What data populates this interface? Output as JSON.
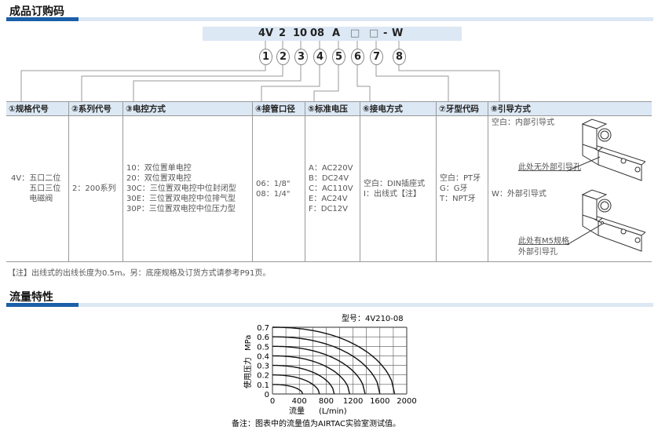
{
  "section1": {
    "title": "成品订购码"
  },
  "order_code": {
    "parts": [
      "4V",
      "2",
      "10",
      "08",
      "A",
      "□",
      "□",
      "-",
      "W"
    ],
    "circles": [
      "1",
      "2",
      "3",
      "4",
      "5",
      "6",
      "7",
      "8"
    ]
  },
  "table": {
    "headers": [
      "①规格代号",
      "②系列代号",
      "③电控方式",
      "④接管口径",
      "⑤标准电压",
      "⑥接电方式",
      "⑦牙型代码",
      "⑧引导方式"
    ],
    "col1": {
      "prefix": "4V：",
      "lines": [
        "五口二位",
        "五口三位",
        "电磁阀"
      ]
    },
    "col2": [
      "2：200系列"
    ],
    "col3": [
      "10：双位置单电控",
      "20：双位置双电控",
      "30C：三位置双电控中位封闭型",
      "30E：三位置双电控中位排气型",
      "30P：三位置双电控中位压力型"
    ],
    "col4": [
      "06：1/8\"",
      "08：1/4\""
    ],
    "col5": [
      "A：AC220V",
      "B：DC24V",
      "C：AC110V",
      "E：AC24V",
      "F：DC12V"
    ],
    "col6": [
      "空白：DIN插座式",
      "I：出线式【注】"
    ],
    "col7": [
      "空白：PT牙",
      "G：G牙",
      "T：NPT牙"
    ],
    "col8": {
      "internal": "空白：内部引导式",
      "internal_callout": "此处无外部引导孔",
      "external": "W：外部引导式",
      "external_callout_1": "此处有M5规格",
      "external_callout_2": "外部引导孔"
    }
  },
  "note": "【注】出线式的出线长度为0.5m。另：底座规格及订货方式请参考P91页。",
  "section2": {
    "title": "流量特性"
  },
  "chart_data": {
    "type": "line",
    "title": "型号：4V210-08",
    "xlabel": "流量",
    "xunit": "(L/min)",
    "ylabel": "使用压力",
    "yunit": "MPa",
    "xlim": [
      0,
      2000
    ],
    "ylim": [
      0,
      0.7
    ],
    "xticks": [
      "0",
      "400",
      "800",
      "1200",
      "1600",
      "2000"
    ],
    "yticks": [
      "0",
      "0.1",
      "0.2",
      "0.3",
      "0.4",
      "0.5",
      "0.6",
      "0.7"
    ],
    "grid": true,
    "series": [
      {
        "pressure": 0.1,
        "max_flow": 450
      },
      {
        "pressure": 0.2,
        "max_flow": 700
      },
      {
        "pressure": 0.3,
        "max_flow": 920
      },
      {
        "pressure": 0.4,
        "max_flow": 1150
      },
      {
        "pressure": 0.5,
        "max_flow": 1380
      },
      {
        "pressure": 0.6,
        "max_flow": 1600
      },
      {
        "pressure": 0.7,
        "max_flow": 1820
      }
    ],
    "footnote": "备注：图表中的流量值为AIRTAC实验室测试值。"
  },
  "colors": {
    "accent": "#1a5fa8",
    "header_bg": "#dce8f4"
  }
}
